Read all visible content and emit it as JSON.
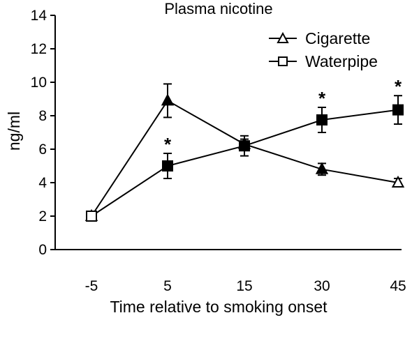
{
  "chart_data": {
    "type": "line",
    "title": "Plasma nicotine",
    "xlabel": "Time relative to smoking onset",
    "ylabel": "ng/ml",
    "categories": [
      "-5",
      "5",
      "15",
      "30",
      "45"
    ],
    "ylim": [
      0,
      14
    ],
    "yticks": [
      0,
      2,
      4,
      6,
      8,
      10,
      12,
      14
    ],
    "grid": false,
    "legend_position": "top-right",
    "series": [
      {
        "name": "Cigarette",
        "marker": "triangle",
        "values": [
          2.0,
          8.9,
          6.3,
          4.8,
          4.0
        ],
        "error": [
          0,
          1.0,
          0.3,
          0.35,
          0.25
        ],
        "fill": [
          "#ffffff",
          "#000000",
          "#000000",
          "#000000",
          "#ffffff"
        ]
      },
      {
        "name": "Waterpipe",
        "marker": "square",
        "values": [
          2.0,
          5.0,
          6.2,
          7.75,
          8.35
        ],
        "error": [
          0,
          0.75,
          0.6,
          0.75,
          0.85
        ],
        "fill": [
          "#ffffff",
          "#000000",
          "#000000",
          "#000000",
          "#000000"
        ]
      }
    ],
    "annotations": [
      {
        "category": "5",
        "text": "*"
      },
      {
        "category": "30",
        "text": "*"
      },
      {
        "category": "45",
        "text": "*"
      }
    ],
    "colors": {
      "line": "#000000",
      "background": "#ffffff"
    }
  }
}
